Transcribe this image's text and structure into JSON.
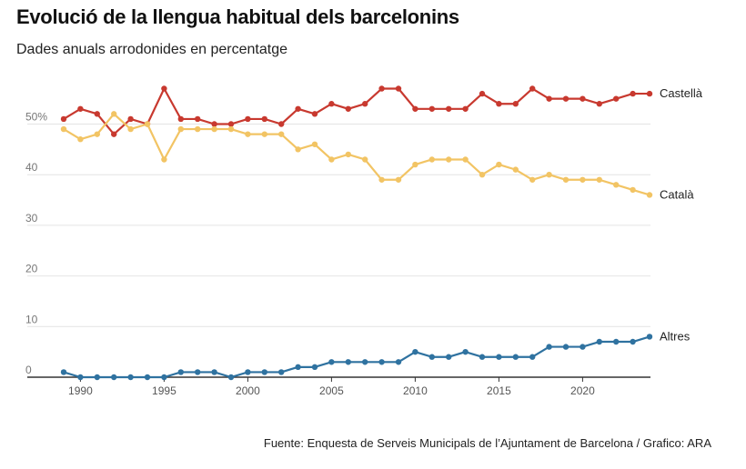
{
  "chart_data": {
    "type": "line",
    "title": "Evolució de la llengua habitual dels barcelonins",
    "subtitle": "Dades anuals arrodonides en percentatge",
    "source": "Fuente: Enquesta de Serveis Municipals de l’Ajuntament de Barcelona / Grafico: ARA",
    "xlabel": "",
    "ylabel": "",
    "ylim": [
      0,
      60
    ],
    "xlim": [
      1989,
      2024
    ],
    "grid": true,
    "y_ticks": [
      {
        "v": 0,
        "label": "0"
      },
      {
        "v": 10,
        "label": "10"
      },
      {
        "v": 20,
        "label": "20"
      },
      {
        "v": 30,
        "label": "30"
      },
      {
        "v": 40,
        "label": "40"
      },
      {
        "v": 50,
        "label": "50%"
      }
    ],
    "x_ticks": [
      {
        "v": 1990,
        "label": "1990"
      },
      {
        "v": 1995,
        "label": "1995"
      },
      {
        "v": 2000,
        "label": "2000"
      },
      {
        "v": 2005,
        "label": "2005"
      },
      {
        "v": 2010,
        "label": "2010"
      },
      {
        "v": 2015,
        "label": "2015"
      },
      {
        "v": 2020,
        "label": "2020"
      }
    ],
    "x": [
      1989,
      1990,
      1991,
      1992,
      1993,
      1994,
      1995,
      1996,
      1997,
      1998,
      1999,
      2000,
      2001,
      2002,
      2003,
      2004,
      2005,
      2006,
      2007,
      2008,
      2009,
      2010,
      2011,
      2012,
      2013,
      2014,
      2015,
      2016,
      2017,
      2018,
      2019,
      2020,
      2021,
      2022,
      2023,
      2024
    ],
    "series": [
      {
        "name": "Castellà",
        "color": "#c8392f",
        "values": [
          51,
          53,
          52,
          48,
          51,
          50,
          57,
          51,
          51,
          50,
          50,
          51,
          51,
          50,
          53,
          52,
          54,
          53,
          54,
          57,
          57,
          53,
          53,
          53,
          53,
          56,
          54,
          54,
          57,
          55,
          55,
          55,
          54,
          55,
          56,
          56
        ]
      },
      {
        "name": "Català",
        "color": "#f2c464",
        "values": [
          49,
          47,
          48,
          52,
          49,
          50,
          43,
          49,
          49,
          49,
          49,
          48,
          48,
          48,
          45,
          46,
          43,
          44,
          43,
          39,
          39,
          42,
          43,
          43,
          43,
          40,
          42,
          41,
          39,
          40,
          39,
          39,
          39,
          38,
          37,
          36
        ]
      },
      {
        "name": "Altres",
        "color": "#2f72a0",
        "values": [
          1,
          0,
          0,
          0,
          0,
          0,
          0,
          1,
          1,
          1,
          0,
          1,
          1,
          1,
          2,
          2,
          3,
          3,
          3,
          3,
          3,
          5,
          4,
          4,
          5,
          4,
          4,
          4,
          4,
          6,
          6,
          6,
          7,
          7,
          7,
          8
        ]
      }
    ]
  }
}
